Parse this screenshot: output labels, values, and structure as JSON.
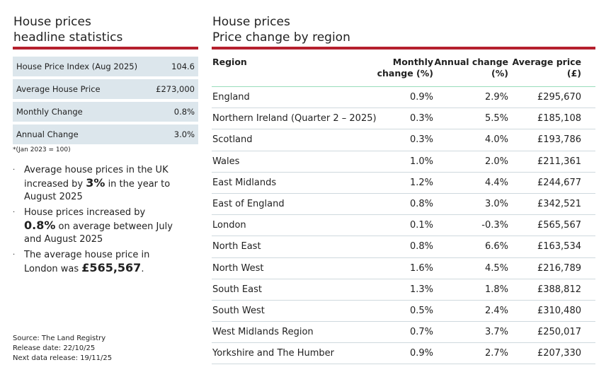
{
  "left": {
    "title": [
      "House prices",
      "headline statistics"
    ],
    "stats": [
      [
        "House Price Index (Aug 2025)",
        "104.6"
      ],
      [
        "Average House Price",
        "£273,000"
      ],
      [
        "Monthly Change",
        "0.8%"
      ],
      [
        "Annual Change",
        "3.0%"
      ]
    ],
    "footnote": "*(Jan 2023 = 100)",
    "bullets": [
      [
        "Average house prices in the UK increased by ",
        "3%",
        " in the year to August 2025"
      ],
      [
        "House prices increased by ",
        "0.8%",
        " on average between July and August 2025"
      ],
      [
        "The average house price in London was ",
        "£565,567",
        "."
      ]
    ],
    "source": [
      "Source: The Land Registry",
      "Release date: 22/10/25",
      "Next data release: 19/11/25"
    ]
  },
  "right": {
    "title": [
      "House prices",
      "Price change by region"
    ],
    "table": {
      "header": [
        "Region",
        "Monthly change (%)",
        "Annual change (%)",
        "Average price (£)"
      ],
      "rows": [
        [
          "England",
          "0.9%",
          "2.9%",
          "£295,670"
        ],
        [
          "Northern Ireland (Quarter 2 – 2025)",
          "0.3%",
          "5.5%",
          "£185,108"
        ],
        [
          "Scotland",
          "0.3%",
          "4.0%",
          "£193,786"
        ],
        [
          "Wales",
          "1.0%",
          "2.0%",
          "£211,361"
        ],
        [
          "East Midlands",
          "1.2%",
          "4.4%",
          "£244,677"
        ],
        [
          "East of England",
          "0.8%",
          "3.0%",
          "£342,521"
        ],
        [
          "London",
          "0.1%",
          "-0.3%",
          "£565,567"
        ],
        [
          "North East",
          "0.8%",
          "6.6%",
          "£163,534"
        ],
        [
          "North West",
          "1.6%",
          "4.5%",
          "£216,789"
        ],
        [
          "South East",
          "1.3%",
          "1.8%",
          "£388,812"
        ],
        [
          "South West",
          "0.5%",
          "2.4%",
          "£310,480"
        ],
        [
          "West Midlands Region",
          "0.7%",
          "3.7%",
          "£250,017"
        ],
        [
          "Yorkshire and The Humber",
          "0.9%",
          "2.7%",
          "£207,330"
        ]
      ]
    }
  }
}
